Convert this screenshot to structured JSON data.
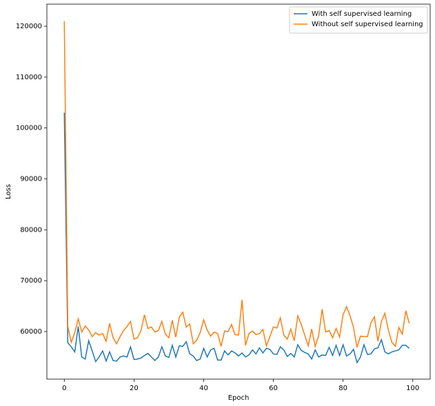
{
  "chart_data": {
    "type": "line",
    "xlabel": "Epoch",
    "ylabel": "Loss",
    "x": [
      0,
      1,
      2,
      3,
      4,
      5,
      6,
      7,
      8,
      9,
      10,
      11,
      12,
      13,
      14,
      15,
      16,
      17,
      18,
      19,
      20,
      21,
      22,
      23,
      24,
      25,
      26,
      27,
      28,
      29,
      30,
      31,
      32,
      33,
      34,
      35,
      36,
      37,
      38,
      39,
      40,
      41,
      42,
      43,
      44,
      45,
      46,
      47,
      48,
      49,
      50,
      51,
      52,
      53,
      54,
      55,
      56,
      57,
      58,
      59,
      60,
      61,
      62,
      63,
      64,
      65,
      66,
      67,
      68,
      69,
      70,
      71,
      72,
      73,
      74,
      75,
      76,
      77,
      78,
      79,
      80,
      81,
      82,
      83,
      84,
      85,
      86,
      87,
      88,
      89,
      90,
      91,
      92,
      93,
      94,
      95,
      96,
      97,
      98,
      99
    ],
    "series": [
      {
        "name": "With self supervised learning",
        "color": "#1f77b4",
        "values": [
          103000,
          57800,
          57000,
          56000,
          61000,
          55000,
          54600,
          58200,
          56200,
          54100,
          55000,
          56200,
          54200,
          56000,
          54300,
          54200,
          55000,
          55200,
          55000,
          57000,
          54500,
          54600,
          54800,
          55300,
          55700,
          55000,
          54300,
          55000,
          57000,
          55200,
          54900,
          57300,
          55000,
          57200,
          57100,
          58000,
          55600,
          55200,
          54300,
          54600,
          56700,
          55000,
          56400,
          56700,
          54400,
          54400,
          56200,
          55400,
          56200,
          55800,
          55200,
          55800,
          55000,
          55400,
          56400,
          55600,
          56800,
          55800,
          56700,
          56500,
          55600,
          55500,
          57000,
          56400,
          55100,
          55700,
          55000,
          57400,
          56300,
          55900,
          55600,
          54600,
          56400,
          55000,
          55400,
          55300,
          56900,
          55300,
          57300,
          55300,
          57400,
          55200,
          55600,
          56500,
          53900,
          55000,
          57400,
          55500,
          55600,
          56600,
          56800,
          58400,
          56000,
          55600,
          56000,
          56200,
          56400,
          57300,
          57300,
          56700
        ]
      },
      {
        "name": "Without self supervised learning",
        "color": "#ff7f0e",
        "values": [
          121000,
          61000,
          57900,
          59800,
          62500,
          59900,
          61100,
          60300,
          59000,
          59800,
          59300,
          59600,
          58100,
          61600,
          58800,
          57600,
          59000,
          60200,
          61000,
          62000,
          58500,
          58800,
          60200,
          63300,
          60600,
          60900,
          59900,
          60200,
          62000,
          59500,
          58800,
          62200,
          58900,
          62800,
          63800,
          60900,
          61500,
          57600,
          58300,
          59800,
          62300,
          60300,
          59100,
          59900,
          59600,
          57100,
          60100,
          60000,
          61400,
          59400,
          59300,
          66200,
          57300,
          59600,
          60100,
          59400,
          59600,
          60400,
          57200,
          59000,
          60900,
          60700,
          62700,
          59300,
          58500,
          60500,
          58200,
          63100,
          61400,
          59300,
          57200,
          60500,
          57100,
          59200,
          64400,
          59900,
          60200,
          58800,
          60600,
          58900,
          63300,
          64900,
          63100,
          60800,
          56900,
          59100,
          59000,
          59000,
          61700,
          62900,
          58100,
          62000,
          63600,
          60300,
          57900,
          57100,
          60800,
          59500,
          64100,
          61600
        ]
      }
    ],
    "xlim": [
      -5,
      105
    ],
    "ylim": [
      50654,
      124334
    ],
    "xticks": [
      0,
      20,
      40,
      60,
      80,
      100
    ],
    "yticks": [
      60000,
      70000,
      80000,
      90000,
      100000,
      110000,
      120000
    ],
    "legend": "upper right"
  }
}
